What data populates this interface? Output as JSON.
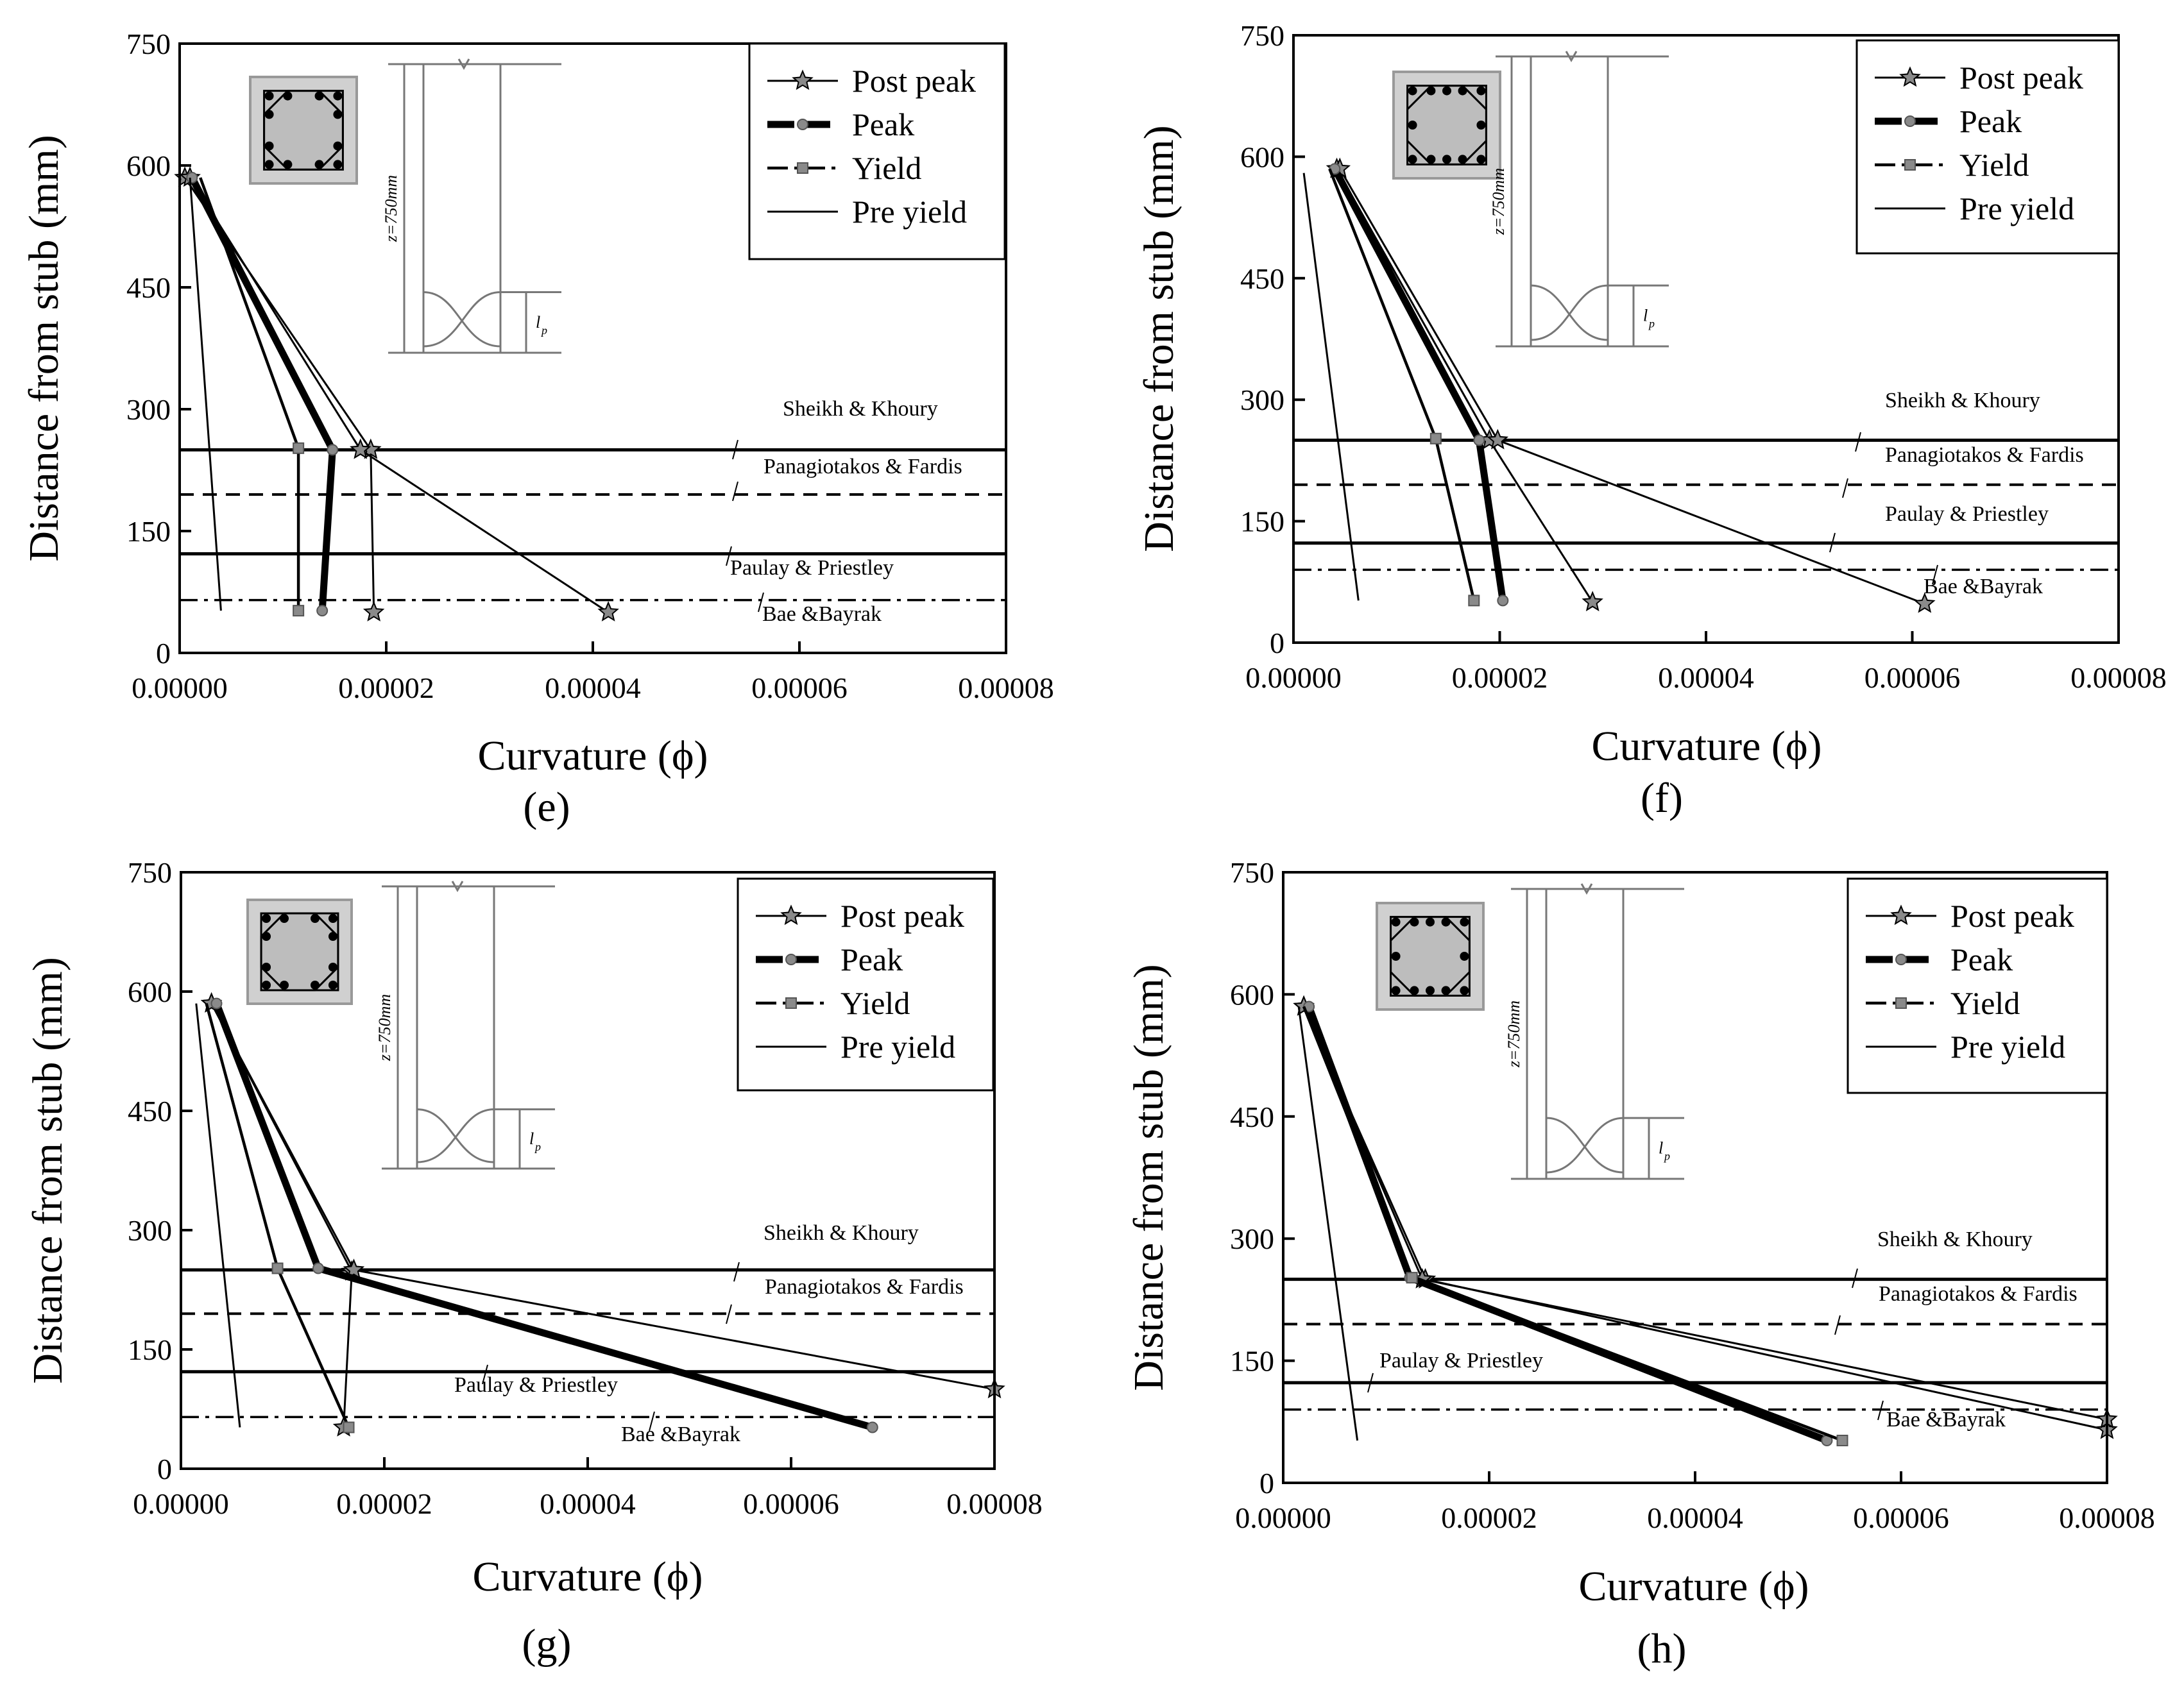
{
  "figure": {
    "x_axis_label": "Curvature (ϕ)",
    "y_axis_label": "Distance from stub (mm)",
    "sketch_height_label": "z=750mm",
    "sketch_lp_label": "l",
    "sketch_lp_sub": "p"
  },
  "legend_entries": [
    "Post peak",
    "Peak",
    "Yield",
    "Pre yield"
  ],
  "reference_line_labels": {
    "sheikh": "Sheikh & Khoury",
    "panagiotakos": "Panagiotakos & Fardis",
    "paulay": "Paulay & Priestley",
    "bae": "Bae &Bayrak"
  },
  "colors": {
    "ink": "#000000",
    "section_fill": "#bdbdbd",
    "section_border": "#999999",
    "marker_fill": "#8a8a8a",
    "sketch": "#777777"
  },
  "chart_data": [
    {
      "panel_label": "(e)",
      "type": "line",
      "xlim": [
        0,
        8e-05
      ],
      "ylim": [
        0,
        750
      ],
      "x_ticks": [
        "0.00000",
        "0.00002",
        "0.00004",
        "0.00006",
        "0.00008"
      ],
      "y_ticks": [
        "0",
        "150",
        "300",
        "450",
        "600",
        "750"
      ],
      "section_bars": "corners",
      "reference_lines": {
        "sheikh": 250,
        "panagiotakos": 195,
        "paulay": 122,
        "bae": 65
      },
      "series": [
        {
          "name": "Post peak",
          "x": [
            5e-07,
            1.85e-05,
            1.88e-05
          ],
          "y": [
            585,
            250,
            50
          ]
        },
        {
          "name": "Post peak",
          "x": [
            1e-06,
            1.75e-05,
            4.15e-05
          ],
          "y": [
            585,
            250,
            50
          ]
        },
        {
          "name": "Peak",
          "x": [
            1.2e-06,
            1.48e-05,
            1.38e-05
          ],
          "y": [
            585,
            250,
            52
          ]
        },
        {
          "name": "Yield",
          "x": [
            2e-06,
            1.15e-05,
            1.15e-05
          ],
          "y": [
            585,
            252,
            52
          ]
        },
        {
          "name": "Pre yield",
          "x": [
            1e-06,
            4e-06
          ],
          "y": [
            585,
            52
          ]
        }
      ]
    },
    {
      "panel_label": "(f)",
      "type": "line",
      "xlim": [
        0,
        8e-05
      ],
      "ylim": [
        0,
        750
      ],
      "x_ticks": [
        "0.00000",
        "0.00002",
        "0.00004",
        "0.00006",
        "0.00008"
      ],
      "y_ticks": [
        "0",
        "150",
        "300",
        "450",
        "600",
        "750"
      ],
      "section_bars": "mid",
      "reference_lines": {
        "sheikh": 250,
        "panagiotakos": 195,
        "paulay": 123,
        "bae": 90
      },
      "series": [
        {
          "name": "Post peak",
          "x": [
            4.2e-06,
            1.9e-05,
            2.9e-05
          ],
          "y": [
            585,
            250,
            50
          ]
        },
        {
          "name": "Post peak",
          "x": [
            4.5e-06,
            1.98e-05,
            6.12e-05
          ],
          "y": [
            585,
            250,
            48
          ]
        },
        {
          "name": "Peak",
          "x": [
            4e-06,
            1.8e-05,
            2.03e-05
          ],
          "y": [
            585,
            250,
            52
          ]
        },
        {
          "name": "Yield",
          "x": [
            3.5e-06,
            1.38e-05,
            1.75e-05
          ],
          "y": [
            585,
            252,
            52
          ]
        },
        {
          "name": "Pre yield",
          "x": [
            1e-06,
            6.3e-06
          ],
          "y": [
            580,
            52
          ]
        }
      ]
    },
    {
      "panel_label": "(g)",
      "type": "line",
      "xlim": [
        0,
        8e-05
      ],
      "ylim": [
        0,
        750
      ],
      "x_ticks": [
        "0.00000",
        "0.00002",
        "0.00004",
        "0.00006",
        "0.00008"
      ],
      "y_ticks": [
        "0",
        "150",
        "300",
        "450",
        "600",
        "750"
      ],
      "section_bars": "corners",
      "reference_lines": {
        "sheikh": 250,
        "panagiotakos": 195,
        "paulay": 122,
        "bae": 65
      },
      "series": [
        {
          "name": "Post peak",
          "x": [
            3e-06,
            1.68e-05,
            1.6e-05
          ],
          "y": [
            585,
            248,
            52
          ]
        },
        {
          "name": "Post peak",
          "x": [
            3e-06,
            1.7e-05,
            8e-05
          ],
          "y": [
            585,
            250,
            100
          ]
        },
        {
          "name": "Peak",
          "x": [
            3.5e-06,
            1.35e-05,
            6.8e-05
          ],
          "y": [
            585,
            252,
            52
          ]
        },
        {
          "name": "Yield",
          "x": [
            2.5e-06,
            9.5e-06,
            1.65e-05
          ],
          "y": [
            585,
            252,
            52
          ]
        },
        {
          "name": "Pre yield",
          "x": [
            1.5e-06,
            5.8e-06
          ],
          "y": [
            585,
            52
          ]
        }
      ]
    },
    {
      "panel_label": "(h)",
      "type": "line",
      "xlim": [
        0,
        8e-05
      ],
      "ylim": [
        0,
        750
      ],
      "x_ticks": [
        "0.00000",
        "0.00002",
        "0.00004",
        "0.00006",
        "0.00008"
      ],
      "y_ticks": [
        "0",
        "150",
        "300",
        "450",
        "600",
        "750"
      ],
      "section_bars": "mid",
      "reference_lines": {
        "sheikh": 250,
        "panagiotakos": 195,
        "paulay": 123,
        "bae": 90
      },
      "series": [
        {
          "name": "Post peak",
          "x": [
            2e-06,
            1.38e-05,
            8e-05
          ],
          "y": [
            585,
            250,
            65
          ]
        },
        {
          "name": "Post peak",
          "x": [
            2e-06,
            1.35e-05,
            8e-05
          ],
          "y": [
            585,
            250,
            78
          ]
        },
        {
          "name": "Peak",
          "x": [
            2.5e-06,
            1.23e-05,
            5.28e-05
          ],
          "y": [
            585,
            252,
            52
          ]
        },
        {
          "name": "Yield",
          "x": [
            2e-06,
            1.25e-05,
            5.43e-05
          ],
          "y": [
            585,
            252,
            52
          ]
        },
        {
          "name": "Pre yield",
          "x": [
            1.5e-06,
            7.2e-06
          ],
          "y": [
            585,
            52
          ]
        }
      ]
    }
  ]
}
